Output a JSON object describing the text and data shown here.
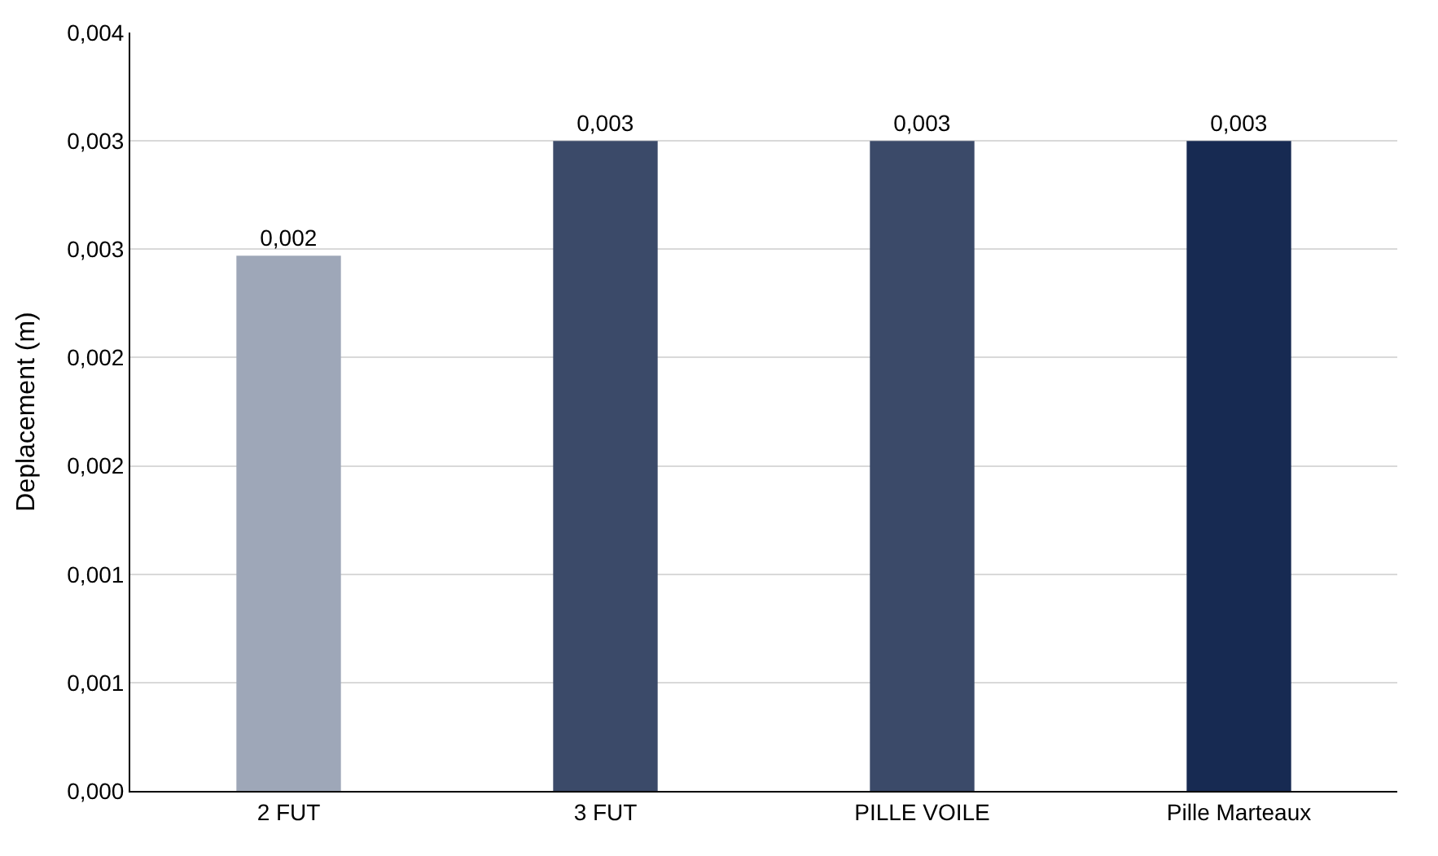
{
  "chart_data": {
    "type": "bar",
    "ylabel": "Deplacement (m)",
    "categories": [
      "2 FUT",
      "3 FUT",
      "PILLE VOILE",
      "Pille Marteaux"
    ],
    "values": [
      0.00247,
      0.003,
      0.003,
      0.003
    ],
    "colors": [
      "#9ea7b8",
      "#3b4a69",
      "#3b4a69",
      "#172a52"
    ],
    "value_labels": [
      "0,002",
      "0,003",
      "0,003",
      "0,003"
    ],
    "ylim": [
      0,
      0.0035
    ],
    "yticks": [
      {
        "value": 0,
        "label": "0,000"
      },
      {
        "value": 0.0005,
        "label": "0,001"
      },
      {
        "value": 0.001,
        "label": "0,001"
      },
      {
        "value": 0.0015,
        "label": "0,002"
      },
      {
        "value": 0.002,
        "label": "0,002"
      },
      {
        "value": 0.0025,
        "label": "0,003"
      },
      {
        "value": 0.003,
        "label": "0,003"
      },
      {
        "value": 0.0035,
        "label": "0,004"
      }
    ],
    "grid": "y",
    "legend": false
  }
}
